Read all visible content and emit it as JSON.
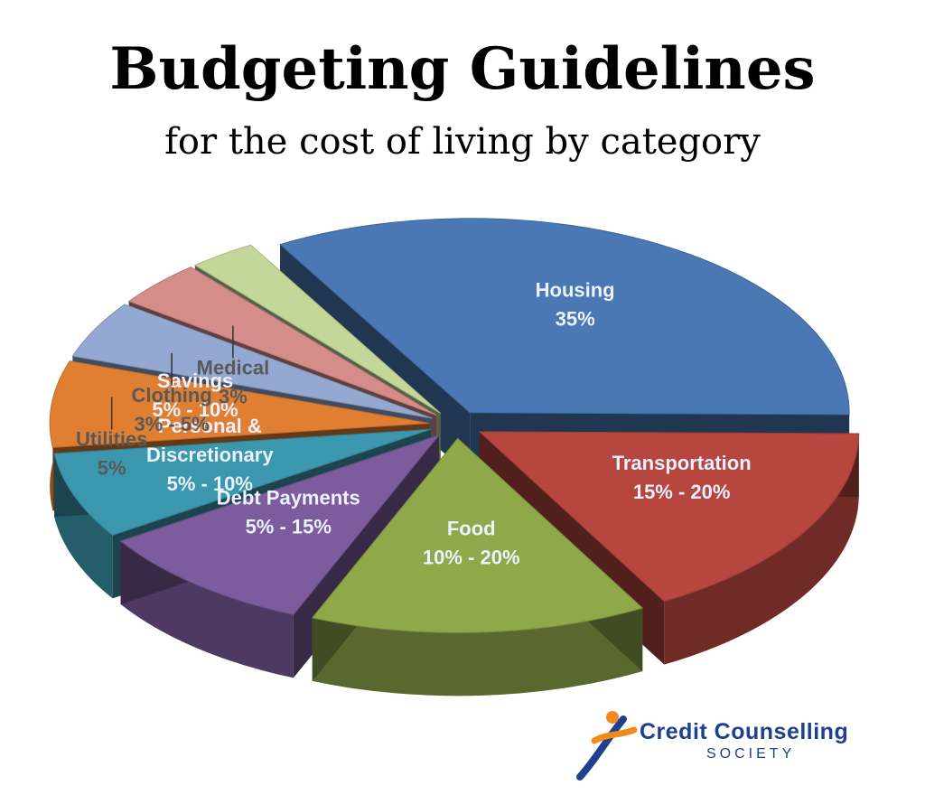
{
  "chart_data": {
    "type": "pie",
    "title": "Budgeting Guidelines",
    "subtitle": "for the cost of living by category",
    "slices": [
      {
        "name": "Housing",
        "value": 35,
        "range_label": "35%",
        "color": "#4a78b4"
      },
      {
        "name": "Transportation",
        "value": 17.5,
        "range_label": "15% - 20%",
        "color": "#b7463f"
      },
      {
        "name": "Food",
        "value": 15,
        "range_label": "10% - 20%",
        "color": "#8fa84a"
      },
      {
        "name": "Debt Payments",
        "value": 10,
        "range_label": "5% - 15%",
        "color": "#7d5c9e"
      },
      {
        "name": "Personal & Discretionary",
        "value": 7.5,
        "range_label": "5% - 10%",
        "color": "#3b97ad"
      },
      {
        "name": "Savings",
        "value": 7.5,
        "range_label": "5% - 10%",
        "color": "#e07f31"
      },
      {
        "name": "Utilities",
        "value": 5,
        "range_label": "5%",
        "color": "#93a9d1"
      },
      {
        "name": "Clothing",
        "value": 4,
        "range_label": "3% - 5%",
        "color": "#d58d8a"
      },
      {
        "name": "Medical",
        "value": 3,
        "range_label": "3%",
        "color": "#c3d79a"
      }
    ]
  },
  "logo": {
    "line1": "Credit Counselling",
    "line2": "SOCIETY"
  }
}
